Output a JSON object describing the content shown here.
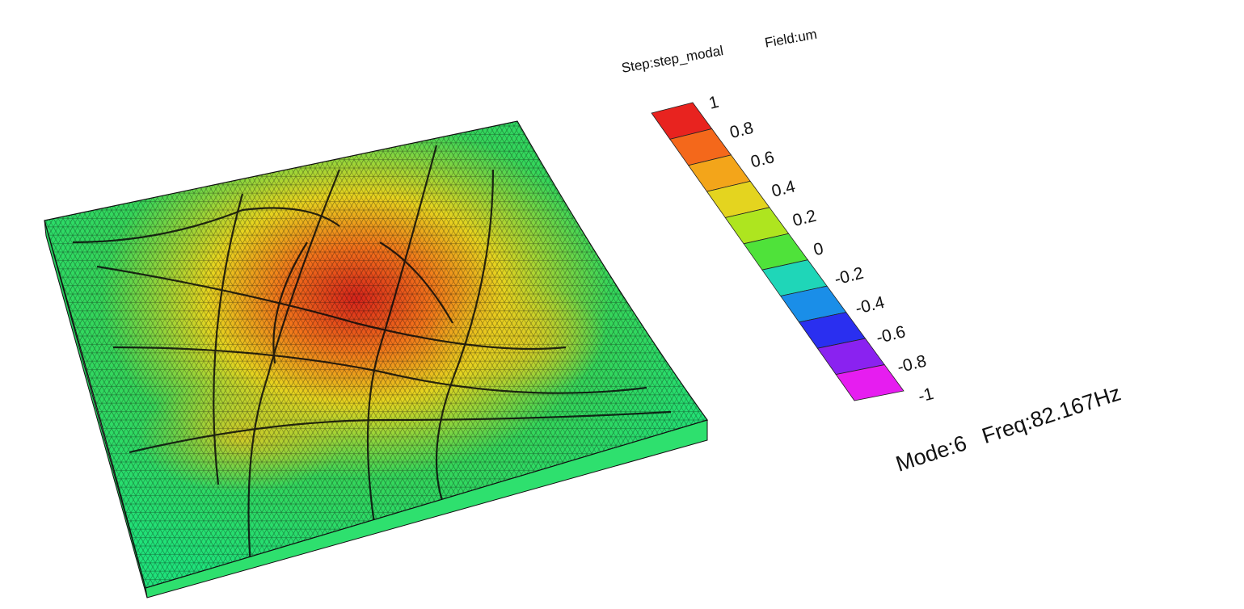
{
  "header": {
    "step_label": "Step:step_modal",
    "field_label": "Field:um"
  },
  "result": {
    "mode_label": "Mode:6",
    "freq_label": "Freq:82.167Hz",
    "mode_number": 6,
    "frequency_hz": 82.167
  },
  "legend": {
    "ticks": [
      "1",
      "0.8",
      "0.6",
      "0.4",
      "0.2",
      "0",
      "-0.2",
      "-0.4",
      "-0.6",
      "-0.8",
      "-1"
    ],
    "bands": [
      "#e8231f",
      "#f4681b",
      "#f3a51a",
      "#e4d41f",
      "#aee51f",
      "#4fe23a",
      "#1fd6b8",
      "#1a8ee8",
      "#2a2ff0",
      "#8a22f0",
      "#e61df0"
    ],
    "range": [
      -1,
      1
    ]
  },
  "mesh": {
    "colors": {
      "peak": "#d7231a",
      "mid": "#e6d41f",
      "base": "#35d65a",
      "edge": "#1fe27a"
    }
  }
}
